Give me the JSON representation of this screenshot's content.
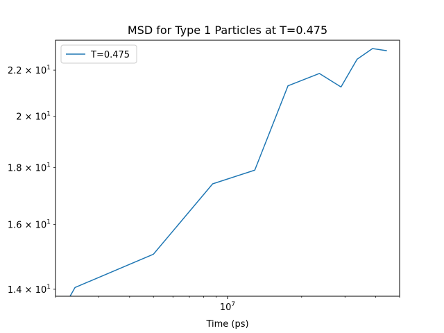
{
  "chart_data": {
    "type": "line",
    "title": "MSD for Type 1 Particles at T=0.475",
    "xlabel": "Time (ps)",
    "ylabel": "",
    "x_scale": "log",
    "y_scale": "log",
    "xlim": [
      2000000,
      50000000
    ],
    "ylim": [
      13.8,
      23.4
    ],
    "x_ticks": [
      {
        "value": 10000000,
        "base": "10",
        "exp": "7"
      }
    ],
    "y_ticks": [
      {
        "value": 14,
        "mant": "1.4",
        "base": "10",
        "exp": "1"
      },
      {
        "value": 16,
        "mant": "1.6",
        "base": "10",
        "exp": "1"
      },
      {
        "value": 18,
        "mant": "1.8",
        "base": "10",
        "exp": "1"
      },
      {
        "value": 20,
        "mant": "2",
        "base": "10",
        "exp": "1"
      },
      {
        "value": 22,
        "mant": "2.2",
        "base": "10",
        "exp": "1"
      }
    ],
    "grid": false,
    "legend": {
      "placement": "top-left"
    },
    "series": [
      {
        "name": "T=0.475",
        "color": "#1f77b4",
        "x": [
          2250000,
          2400000,
          5000000,
          8700000,
          12900000,
          17600000,
          23600000,
          28900000,
          33600000,
          38800000,
          44400000
        ],
        "values": [
          13.7,
          14.05,
          15.05,
          17.4,
          17.9,
          21.3,
          21.85,
          21.25,
          22.5,
          23.0,
          22.9
        ]
      }
    ]
  }
}
